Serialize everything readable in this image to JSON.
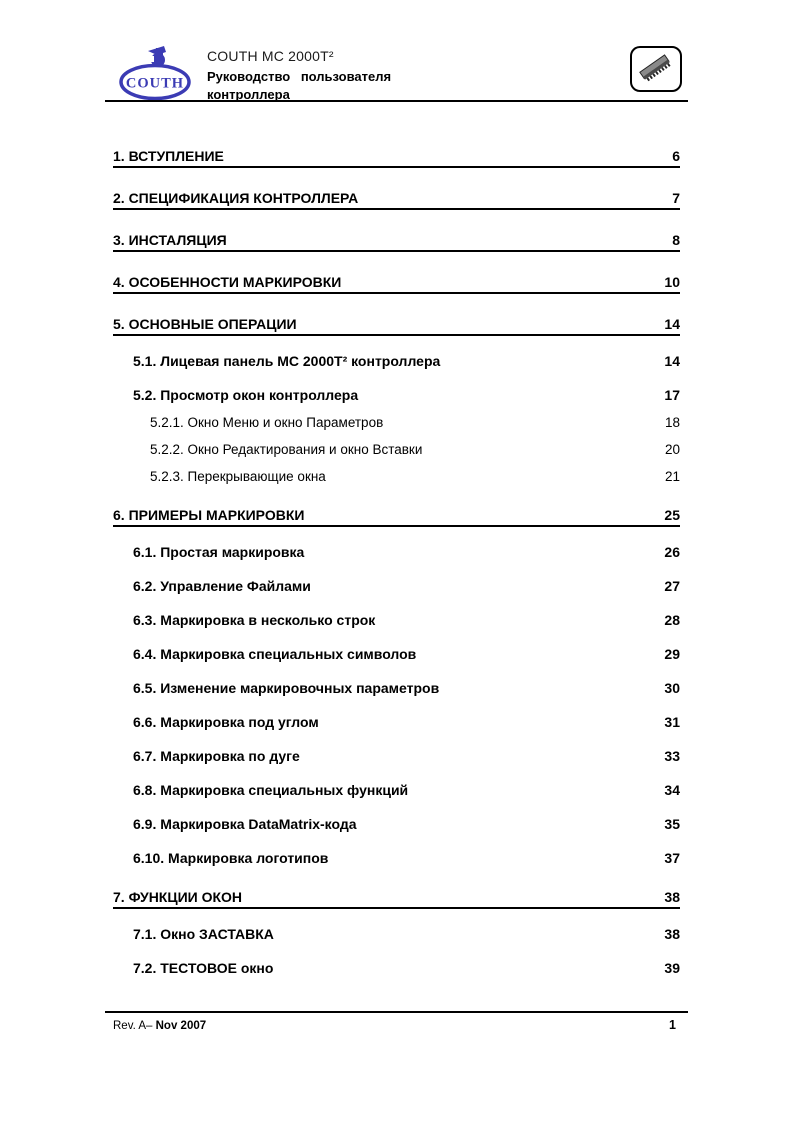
{
  "header": {
    "logo_text": "COUTH",
    "logo_icon": "couth-marking-machine-logo",
    "product": "COUTH MC 2000T²",
    "subtitle_line1": "Руководство пользователя",
    "subtitle_line2": "контроллера",
    "right_icon": "microchip-icon"
  },
  "toc": {
    "entries": [
      {
        "level": 1,
        "label": "1. ВСТУПЛЕНИЕ",
        "page": "6"
      },
      {
        "level": 1,
        "label": "2. СПЕЦИФИКАЦИЯ КОНТРОЛЛЕРА",
        "page": "7"
      },
      {
        "level": 1,
        "label": "3. ИНСТАЛЯЦИЯ",
        "page": "8"
      },
      {
        "level": 1,
        "label": "4. ОСОБЕННОСТИ МАРКИРОВКИ",
        "page": "10"
      },
      {
        "level": 1,
        "label": "5. ОСНОВНЫЕ ОПЕРАЦИИ",
        "page": "14"
      },
      {
        "level": 2,
        "label": "5.1. Лицевая панель MC 2000T² контроллера",
        "page": "14"
      },
      {
        "level": 2,
        "label": "5.2. Просмотр окон контроллера",
        "page": "17"
      },
      {
        "level": 3,
        "label": "5.2.1. Окно Меню и окно Параметров",
        "page": "18"
      },
      {
        "level": 3,
        "label": "5.2.2. Окно Редактирования и окно Вставки",
        "page": "20"
      },
      {
        "level": 3,
        "label": "5.2.3. Перекрывающие окна",
        "page": "21"
      },
      {
        "level": 1,
        "label": "6. ПРИМЕРЫ МАРКИРОВКИ",
        "page": "25"
      },
      {
        "level": 2,
        "label": "6.1. Простая маркировка",
        "page": "26"
      },
      {
        "level": 2,
        "label": "6.2. Управление Файлами",
        "page": "27"
      },
      {
        "level": 2,
        "label": "6.3. Маркировка в несколько строк",
        "page": "28"
      },
      {
        "level": 2,
        "label": "6.4. Маркировка специальных символов",
        "page": "29"
      },
      {
        "level": 2,
        "label": "6.5. Изменение маркировочных параметров",
        "page": "30"
      },
      {
        "level": 2,
        "label": "6.6. Маркировка под углом",
        "page": "31"
      },
      {
        "level": 2,
        "label": "6.7. Маркировка по дуге",
        "page": "33"
      },
      {
        "level": 2,
        "label": "6.8. Маркировка специальных функций",
        "page": "34"
      },
      {
        "level": 2,
        "label": "6.9. Маркировка DataMatrix-кода",
        "page": "35"
      },
      {
        "level": 2,
        "label": "6.10. Маркировка логотипов",
        "page": "37"
      },
      {
        "level": 1,
        "label": "7. ФУНКЦИИ ОКОН",
        "page": "38"
      },
      {
        "level": 2,
        "label": "7.1. Окно ЗАСТАВКА",
        "page": "38"
      },
      {
        "level": 2,
        "label": "7.2. ТЕСТОВОЕ окно",
        "page": "39"
      }
    ]
  },
  "footer": {
    "revision_prefix": "Rev. A–",
    "revision_date": "Nov 2007",
    "page_number": "1"
  },
  "colors": {
    "logo_blue": "#3b3bb4",
    "rule": "#000000",
    "chip_body": "#8a8a8a"
  }
}
